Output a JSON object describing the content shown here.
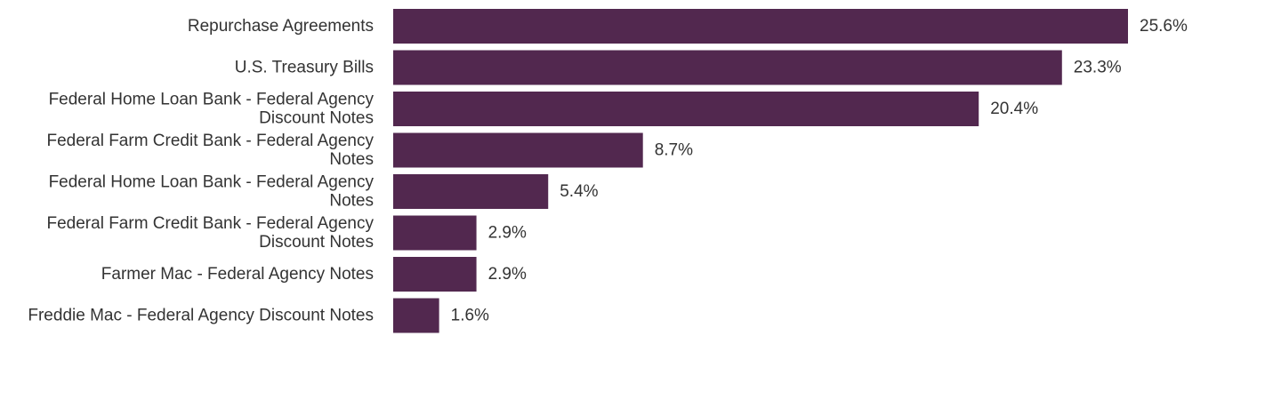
{
  "chart_data": {
    "type": "bar",
    "orientation": "horizontal",
    "categories": [
      "Repurchase Agreements",
      "U.S. Treasury Bills",
      "Federal Home Loan Bank - Federal Agency Discount Notes",
      "Federal Farm Credit Bank - Federal Agency Notes",
      "Federal Home Loan Bank - Federal Agency Notes",
      "Federal Farm Credit Bank - Federal Agency Discount Notes",
      "Farmer Mac - Federal Agency Notes",
      "Freddie Mac - Federal Agency Discount Notes"
    ],
    "values": [
      25.6,
      23.3,
      20.4,
      8.7,
      5.4,
      2.9,
      2.9,
      1.6
    ],
    "value_labels": [
      "25.6%",
      "23.3%",
      "20.4%",
      "8.7%",
      "5.4%",
      "2.9%",
      "2.9%",
      "1.6%"
    ],
    "title": "",
    "xlabel": "",
    "ylabel": "",
    "grid": false,
    "legend": "none",
    "bar_color": "#52284F"
  }
}
